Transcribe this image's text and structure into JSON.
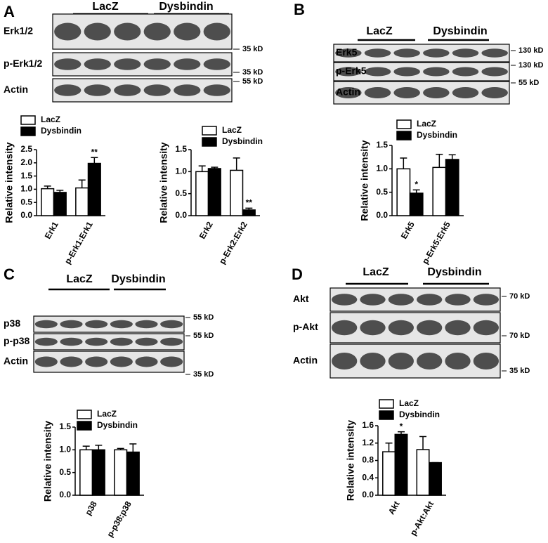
{
  "panels": [
    {
      "label": "A",
      "groups": [
        "LacZ",
        "Dysbindin"
      ],
      "rows": [
        "Erk1/2",
        "p-Erk1/2",
        "Actin"
      ],
      "markers": [
        "35 kD",
        "35 kD",
        "55 kD"
      ]
    },
    {
      "label": "B",
      "groups": [
        "LacZ",
        "Dysbindin"
      ],
      "rows": [
        "Erk5",
        "p-Erk5",
        "Actin"
      ],
      "markers": [
        "130 kD",
        "130 kD",
        "55 kD"
      ]
    },
    {
      "label": "C",
      "groups": [
        "LacZ",
        "Dysbindin"
      ],
      "rows": [
        "p38",
        "p-p38",
        "Actin"
      ],
      "markers": [
        "55 kD",
        "55 kD",
        "35 kD"
      ]
    },
    {
      "label": "D",
      "groups": [
        "LacZ",
        "Dysbindin"
      ],
      "rows": [
        "Akt",
        "p-Akt",
        "Actin"
      ],
      "markers": [
        "70 kD",
        "70 kD",
        "35 kD"
      ]
    }
  ],
  "chart_data": [
    {
      "type": "bar",
      "y_label": "Relative intensity",
      "categories": [
        "Erk1",
        "p-Erk1:Erk1"
      ],
      "series": [
        {
          "name": "LacZ",
          "color": "#ffffff",
          "values": [
            1.02,
            1.05
          ],
          "errors": [
            0.1,
            0.3
          ]
        },
        {
          "name": "Dysbindin",
          "color": "#000000",
          "values": [
            0.88,
            1.98
          ],
          "errors": [
            0.08,
            0.22
          ],
          "significance": [
            null,
            "**"
          ]
        }
      ],
      "ylim": [
        0,
        2.5
      ],
      "yticks": [
        {
          "value": 0,
          "label": "0.0"
        },
        {
          "value": 0.5,
          "label": "0.5"
        },
        {
          "value": 1,
          "label": "1.0"
        },
        {
          "value": 1.5,
          "label": "1.5"
        },
        {
          "value": 2,
          "label": "2.0"
        },
        {
          "value": 2.5,
          "label": "2.5"
        }
      ]
    },
    {
      "type": "bar",
      "y_label": "Relative intensity",
      "categories": [
        "Erk2",
        "p-Erk2:Erk2"
      ],
      "series": [
        {
          "name": "LacZ",
          "color": "#ffffff",
          "values": [
            1.0,
            1.03
          ],
          "errors": [
            0.13,
            0.28
          ]
        },
        {
          "name": "Dysbindin",
          "color": "#000000",
          "values": [
            1.07,
            0.13
          ],
          "errors": [
            0.03,
            0.04
          ],
          "significance": [
            null,
            "**"
          ]
        }
      ],
      "ylim": [
        0,
        1.5
      ],
      "yticks": [
        {
          "value": 0,
          "label": "0.0"
        },
        {
          "value": 0.5,
          "label": "0.5"
        },
        {
          "value": 1,
          "label": "1.0"
        },
        {
          "value": 1.5,
          "label": "1.5"
        }
      ]
    },
    {
      "type": "bar",
      "y_label": "Relative intensity",
      "categories": [
        "Erk5",
        "p-Erk5:Erk5"
      ],
      "series": [
        {
          "name": "LacZ",
          "color": "#ffffff",
          "values": [
            1.0,
            1.03
          ],
          "errors": [
            0.23,
            0.28
          ]
        },
        {
          "name": "Dysbindin",
          "color": "#000000",
          "values": [
            0.48,
            1.2
          ],
          "errors": [
            0.07,
            0.1
          ],
          "significance": [
            "*",
            null
          ]
        }
      ],
      "ylim": [
        0,
        1.5
      ],
      "yticks": [
        {
          "value": 0,
          "label": "0.0"
        },
        {
          "value": 0.5,
          "label": "0.5"
        },
        {
          "value": 1,
          "label": "1.0"
        },
        {
          "value": 1.5,
          "label": "1.5"
        }
      ]
    },
    {
      "type": "bar",
      "y_label": "Relative intensity",
      "categories": [
        "p38",
        "p-p38:p38"
      ],
      "series": [
        {
          "name": "LacZ",
          "color": "#ffffff",
          "values": [
            1.0,
            1.0
          ],
          "errors": [
            0.08,
            0.03
          ]
        },
        {
          "name": "Dysbindin",
          "color": "#000000",
          "values": [
            1.0,
            0.95
          ],
          "errors": [
            0.1,
            0.18
          ]
        }
      ],
      "ylim": [
        0,
        1.5
      ],
      "yticks": [
        {
          "value": 0,
          "label": "0.0"
        },
        {
          "value": 0.5,
          "label": "0.5"
        },
        {
          "value": 1,
          "label": "1.0"
        },
        {
          "value": 1.5,
          "label": "1.5"
        }
      ]
    },
    {
      "type": "bar",
      "y_label": "Relative intensity",
      "categories": [
        "Akt",
        "p-Akt:Akt"
      ],
      "series": [
        {
          "name": "LacZ",
          "color": "#ffffff",
          "values": [
            1.0,
            1.05
          ],
          "errors": [
            0.2,
            0.3
          ]
        },
        {
          "name": "Dysbindin",
          "color": "#000000",
          "values": [
            1.4,
            0.75
          ],
          "errors": [
            0.06,
            0
          ],
          "significance": [
            "*",
            null
          ]
        }
      ],
      "ylim": [
        0,
        1.6
      ],
      "yticks": [
        {
          "value": 0,
          "label": "0.0"
        },
        {
          "value": 0.4,
          "label": "0.4"
        },
        {
          "value": 0.8,
          "label": "0.8"
        },
        {
          "value": 1.2,
          "label": "1.2"
        },
        {
          "value": 1.6,
          "label": "1.6"
        }
      ]
    }
  ]
}
